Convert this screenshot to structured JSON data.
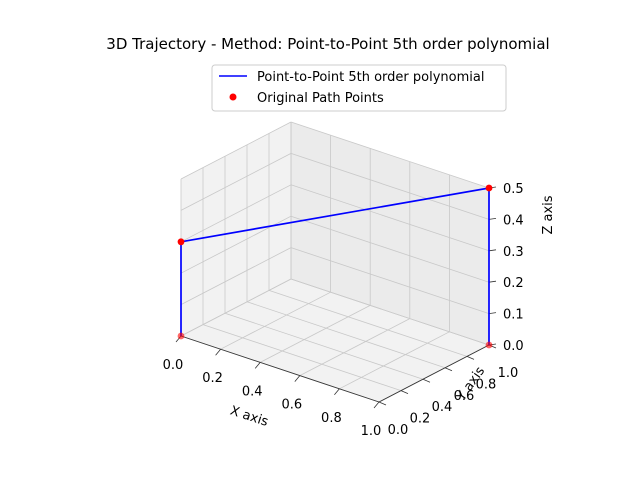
{
  "chart_data": {
    "type": "line3d",
    "title": "3D Trajectory - Method: Point-to-Point 5th order polynomial",
    "xlabel": "X axis",
    "ylabel": "Y axis",
    "zlabel": "Z axis",
    "xlim": [
      0,
      1
    ],
    "ylim": [
      0,
      1
    ],
    "zlim": [
      0,
      0.5
    ],
    "x_ticks": [
      "0.0",
      "0.2",
      "0.4",
      "0.6",
      "0.8",
      "1.0"
    ],
    "y_ticks": [
      "0.0",
      "0.2",
      "0.4",
      "0.6",
      "0.8",
      "1.0"
    ],
    "z_ticks": [
      "0.0",
      "0.1",
      "0.2",
      "0.3",
      "0.4",
      "0.5"
    ],
    "grid": true,
    "legend_position": "top",
    "series": [
      {
        "name": "Point-to-Point 5th order polynomial",
        "kind": "line",
        "color": "#0000ff",
        "points": [
          [
            0,
            0,
            0
          ],
          [
            0,
            0,
            0.3
          ],
          [
            1,
            1,
            0.5
          ],
          [
            1,
            1,
            0
          ]
        ]
      },
      {
        "name": "Original Path Points",
        "kind": "scatter",
        "color": "#ff0000",
        "points": [
          [
            0,
            0,
            0
          ],
          [
            0,
            0,
            0.3
          ],
          [
            1,
            1,
            0.5
          ],
          [
            1,
            1,
            0
          ]
        ]
      }
    ]
  }
}
